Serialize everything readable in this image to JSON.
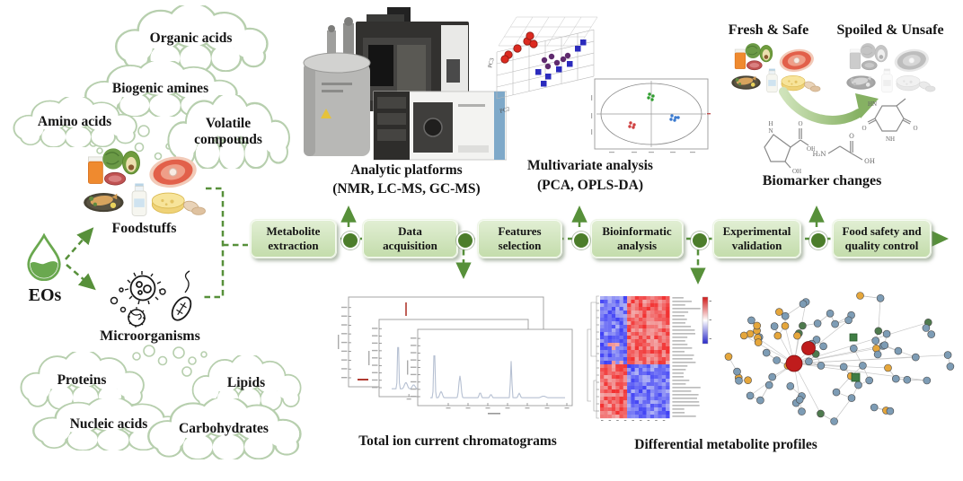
{
  "palette": {
    "accent_green": "#57903a",
    "box_fill_top": "#e2efd5",
    "box_fill_bottom": "#c3dcab",
    "node_green": "#4c7d2b",
    "cloud_stroke": "#b7cfae",
    "text": "#151515",
    "heatmap_red": "#e05050",
    "heatmap_blue": "#7080e0",
    "network_node_blue": "#7d9cb5",
    "network_node_orange": "#e5a63b",
    "network_node_red": "#bf1c1c"
  },
  "left": {
    "metabolite_clouds": [
      {
        "label": "Organic acids"
      },
      {
        "label": "Biogenic amines"
      },
      {
        "label": "Amino acids"
      },
      {
        "label": "Volatile compounds"
      }
    ],
    "source_clouds": [
      {
        "label": "Proteins"
      },
      {
        "label": "Lipids"
      },
      {
        "label": "Nucleic acids"
      },
      {
        "label": "Carbohydrates"
      }
    ],
    "eos_label": "EOs",
    "foodstuffs_label": "Foodstuffs",
    "microorganisms_label": "Microorganisms"
  },
  "workflow": {
    "steps": [
      {
        "label": "Metabolite extraction"
      },
      {
        "label": "Data acquisition"
      },
      {
        "label": "Features selection"
      },
      {
        "label": "Bioinformatic analysis"
      },
      {
        "label": "Experimental validation"
      },
      {
        "label": "Food safety and quality control"
      }
    ]
  },
  "top_panels": {
    "analytic": {
      "title": "Analytic platforms",
      "subtitle": "(NMR, LC-MS, GC-MS)"
    },
    "multivariate": {
      "title": "Multivariate analysis",
      "subtitle": "(PCA, OPLS-DA)",
      "axes": {
        "x": "PC2",
        "y": "PC3",
        "z": "PC"
      }
    },
    "outcome": {
      "fresh": "Fresh & Safe",
      "spoiled": "Spoiled & Unsafe",
      "caption": "Biomarker changes"
    }
  },
  "bottom_panels": {
    "tic": {
      "caption": "Total ion current chromatograms"
    },
    "profiles": {
      "caption": "Differential metabolite profiles"
    }
  },
  "chem": {
    "s1": {
      "n": "N",
      "h": "H",
      "o": "O",
      "oh_right": "OH",
      "oh_bottom": "OH"
    },
    "s2": {
      "amine": "H₂N",
      "o": "O",
      "oh": "OH"
    },
    "s3": {
      "hn": "HN",
      "nh": "NH",
      "o_left": "O",
      "o_right": "O"
    }
  }
}
